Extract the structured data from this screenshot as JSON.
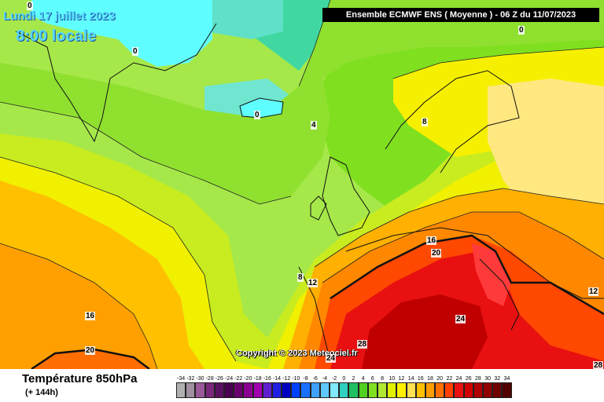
{
  "header": {
    "date_label": "Lundi 17 juillet 2023",
    "time_label": "8:00 locale",
    "model_label": "Ensemble ECMWF ENS  ( Moyenne )  -  06 Z du 11/07/2023"
  },
  "map": {
    "copyright": "Copyright © 2023 Meteociel.fr",
    "contour_labels": [
      "0",
      "0",
      "0",
      "0",
      "4",
      "8",
      "8",
      "12",
      "12",
      "16",
      "16",
      "20",
      "20",
      "24",
      "24",
      "28",
      "28"
    ]
  },
  "footer": {
    "parameter_title": "Température 850hPa",
    "forecast_offset": "(+ 144h)"
  },
  "legend": {
    "labels": [
      "-34",
      "-32",
      "-30",
      "-28",
      "-26",
      "-24",
      "-22",
      "-20",
      "-18",
      "-16",
      "-14",
      "-12",
      "-10",
      "-8",
      "-6",
      "-4",
      "-2",
      "0",
      "2",
      "4",
      "6",
      "8",
      "10",
      "12",
      "14",
      "16",
      "18",
      "20",
      "22",
      "24",
      "26",
      "28",
      "30",
      "32",
      "34"
    ],
    "colors": [
      "#b0b0b0",
      "#a090a0",
      "#9a5a9a",
      "#7a2a7a",
      "#5a1060",
      "#4a0050",
      "#6a0070",
      "#8a0090",
      "#a000b0",
      "#6020d0",
      "#2020e0",
      "#0000c0",
      "#0040ff",
      "#1870ff",
      "#3fa0ff",
      "#5fc8ff",
      "#80e8ff",
      "#30d0c0",
      "#20c060",
      "#50d020",
      "#80e020",
      "#b0e830",
      "#e0f000",
      "#fff000",
      "#ffe050",
      "#ffc000",
      "#ff9c00",
      "#ff7000",
      "#ff4000",
      "#e81010",
      "#d00000",
      "#b00000",
      "#900000",
      "#700000",
      "#500000"
    ]
  }
}
